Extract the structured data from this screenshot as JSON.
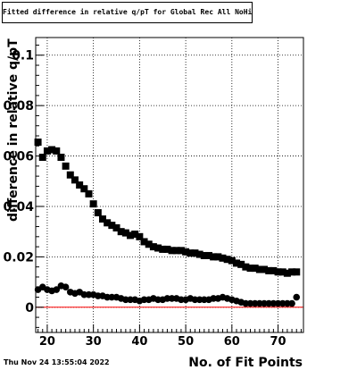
{
  "title": "Fitted difference in relative q/pT for Global Rec All NoHits",
  "footer_timestamp": "Thu Nov 24 13:55:04 2022",
  "colors": {
    "markers": "#000000",
    "zero_line": "#ff0000",
    "grid": "#000000"
  },
  "chart_data": {
    "type": "scatter",
    "title": "Fitted difference in relative q/pT for Global Rec All NoHits",
    "xlabel": "No. of Fit Points",
    "ylabel": "difference in relative q/pT",
    "xlim": [
      17.5,
      75.5
    ],
    "ylim": [
      -0.01,
      0.107
    ],
    "grid": true,
    "legend": "none",
    "x_ticks": [
      20,
      30,
      40,
      50,
      60,
      70
    ],
    "x_tick_labels": [
      "20",
      "30",
      "40",
      "50",
      "60",
      "70"
    ],
    "y_ticks": [
      0,
      0.02,
      0.04,
      0.06,
      0.08,
      0.1
    ],
    "y_tick_labels": [
      "0",
      "0.02",
      "0.04",
      "0.06",
      "0.08",
      "0.1"
    ],
    "reference_line": {
      "y": 0,
      "color": "#ff0000"
    },
    "series": [
      {
        "marker": "square",
        "x": [
          18,
          19,
          20,
          21,
          22,
          23,
          24,
          25,
          26,
          27,
          28,
          29,
          30,
          31,
          32,
          33,
          34,
          35,
          36,
          37,
          38,
          39,
          40,
          41,
          42,
          43,
          44,
          45,
          46,
          47,
          48,
          49,
          50,
          51,
          52,
          53,
          54,
          55,
          56,
          57,
          58,
          59,
          60,
          61,
          62,
          63,
          64,
          65,
          66,
          67,
          68,
          69,
          70,
          71,
          72,
          73,
          74
        ],
        "y": [
          0.0655,
          0.0595,
          0.062,
          0.0625,
          0.062,
          0.0595,
          0.056,
          0.0525,
          0.0505,
          0.0485,
          0.047,
          0.045,
          0.041,
          0.0375,
          0.035,
          0.0335,
          0.0325,
          0.0315,
          0.03,
          0.0295,
          0.0285,
          0.029,
          0.028,
          0.026,
          0.025,
          0.024,
          0.0235,
          0.023,
          0.023,
          0.0225,
          0.0225,
          0.0225,
          0.022,
          0.0215,
          0.0215,
          0.021,
          0.0205,
          0.0205,
          0.02,
          0.02,
          0.0195,
          0.019,
          0.0185,
          0.0175,
          0.017,
          0.016,
          0.0155,
          0.0155,
          0.015,
          0.015,
          0.0145,
          0.0145,
          0.014,
          0.014,
          0.0135,
          0.014,
          0.014
        ]
      },
      {
        "marker": "circle",
        "x": [
          18,
          19,
          20,
          21,
          22,
          23,
          24,
          25,
          26,
          27,
          28,
          29,
          30,
          31,
          32,
          33,
          34,
          35,
          36,
          37,
          38,
          39,
          40,
          41,
          42,
          43,
          44,
          45,
          46,
          47,
          48,
          49,
          50,
          51,
          52,
          53,
          54,
          55,
          56,
          57,
          58,
          59,
          60,
          61,
          62,
          63,
          64,
          65,
          66,
          67,
          68,
          69,
          70,
          71,
          72,
          73,
          74
        ],
        "y": [
          0.007,
          0.008,
          0.007,
          0.0065,
          0.007,
          0.0085,
          0.008,
          0.006,
          0.0055,
          0.006,
          0.005,
          0.005,
          0.005,
          0.0045,
          0.0045,
          0.004,
          0.004,
          0.004,
          0.0035,
          0.003,
          0.003,
          0.003,
          0.0025,
          0.003,
          0.003,
          0.0035,
          0.003,
          0.003,
          0.0035,
          0.0035,
          0.0035,
          0.003,
          0.003,
          0.0035,
          0.003,
          0.003,
          0.003,
          0.003,
          0.0035,
          0.0035,
          0.004,
          0.0035,
          0.003,
          0.0025,
          0.002,
          0.0015,
          0.0015,
          0.0015,
          0.0015,
          0.0015,
          0.0015,
          0.0015,
          0.0015,
          0.0015,
          0.0015,
          0.0015,
          0.004
        ]
      }
    ]
  }
}
